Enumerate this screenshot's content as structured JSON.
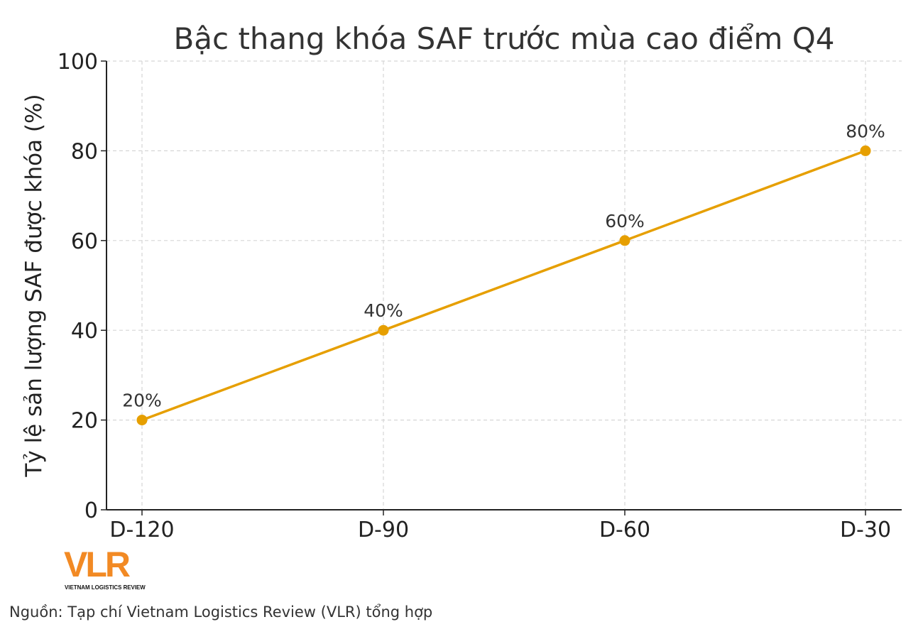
{
  "chart_data": {
    "type": "line",
    "title": "Bậc thang khóa SAF trước mùa cao điểm Q4",
    "xlabel": "",
    "ylabel": "Tỷ lệ sản lượng SAF được khóa (%)",
    "categories": [
      "D-120",
      "D-90",
      "D-60",
      "D-30"
    ],
    "values": [
      20,
      40,
      60,
      80
    ],
    "data_labels": [
      "20%",
      "40%",
      "60%",
      "80%"
    ],
    "ylim": [
      0,
      100
    ],
    "yticks": [
      0,
      20,
      40,
      60,
      80,
      100
    ],
    "grid": true,
    "line_color": "#E69F00"
  },
  "logo": {
    "text": "VLR",
    "subtitle": "VIETNAM LOGISTICS REVIEW",
    "color": "#F28A24"
  },
  "source": "Nguồn: Tạp chí Vietnam Logistics Review (VLR) tổng hợp"
}
